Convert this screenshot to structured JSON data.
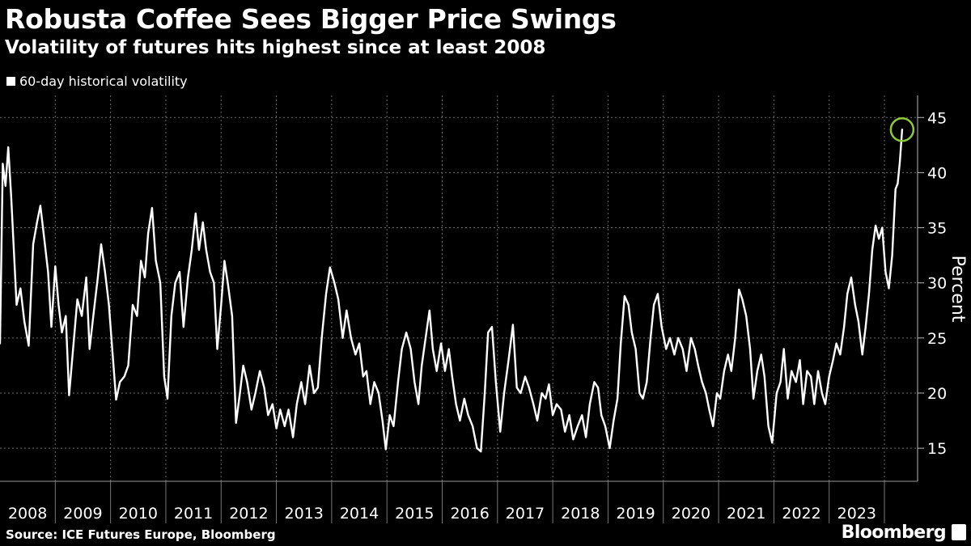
{
  "title": "Robusta Coffee Sees Bigger Price Swings",
  "subtitle": "Volatility of futures hits highest since at least 2008",
  "legend": "60-day historical volatility",
  "source": "Source: ICE Futures Europe, Bloomberg",
  "brand": "Bloomberg",
  "chart_data": {
    "type": "line",
    "series": [
      {
        "name": "60-day historical volatility",
        "color": "#ffffff",
        "points": [
          [
            2008.0,
            24.5
          ],
          [
            2008.05,
            40.8
          ],
          [
            2008.1,
            38.8
          ],
          [
            2008.15,
            42.3
          ],
          [
            2008.2,
            38.0
          ],
          [
            2008.25,
            33.0
          ],
          [
            2008.3,
            28.0
          ],
          [
            2008.37,
            29.5
          ],
          [
            2008.44,
            26.5
          ],
          [
            2008.52,
            24.3
          ],
          [
            2008.6,
            33.5
          ],
          [
            2008.67,
            35.5
          ],
          [
            2008.73,
            37.0
          ],
          [
            2008.8,
            34.0
          ],
          [
            2008.87,
            31.0
          ],
          [
            2008.93,
            26.0
          ],
          [
            2009.0,
            31.5
          ],
          [
            2009.06,
            28.0
          ],
          [
            2009.12,
            25.5
          ],
          [
            2009.19,
            27.0
          ],
          [
            2009.25,
            19.8
          ],
          [
            2009.33,
            24.5
          ],
          [
            2009.4,
            28.5
          ],
          [
            2009.48,
            27.0
          ],
          [
            2009.56,
            30.5
          ],
          [
            2009.62,
            24.0
          ],
          [
            2009.7,
            27.5
          ],
          [
            2009.77,
            30.5
          ],
          [
            2009.83,
            33.5
          ],
          [
            2009.9,
            31.0
          ],
          [
            2009.97,
            28.0
          ],
          [
            2010.03,
            24.0
          ],
          [
            2010.1,
            19.4
          ],
          [
            2010.17,
            21.0
          ],
          [
            2010.25,
            21.5
          ],
          [
            2010.32,
            22.5
          ],
          [
            2010.4,
            28.0
          ],
          [
            2010.48,
            27.0
          ],
          [
            2010.55,
            32.0
          ],
          [
            2010.62,
            30.5
          ],
          [
            2010.68,
            34.5
          ],
          [
            2010.75,
            36.8
          ],
          [
            2010.82,
            32.0
          ],
          [
            2010.9,
            30.0
          ],
          [
            2010.97,
            21.5
          ],
          [
            2011.03,
            19.5
          ],
          [
            2011.1,
            27.0
          ],
          [
            2011.17,
            30.0
          ],
          [
            2011.25,
            31.0
          ],
          [
            2011.32,
            26.0
          ],
          [
            2011.4,
            30.5
          ],
          [
            2011.47,
            33.0
          ],
          [
            2011.54,
            36.3
          ],
          [
            2011.6,
            33.0
          ],
          [
            2011.67,
            35.5
          ],
          [
            2011.73,
            33.0
          ],
          [
            2011.8,
            31.0
          ],
          [
            2011.87,
            30.0
          ],
          [
            2011.93,
            24.0
          ],
          [
            2012.0,
            28.0
          ],
          [
            2012.06,
            32.0
          ],
          [
            2012.12,
            30.0
          ],
          [
            2012.2,
            27.0
          ],
          [
            2012.27,
            17.3
          ],
          [
            2012.34,
            20.0
          ],
          [
            2012.4,
            22.5
          ],
          [
            2012.47,
            21.0
          ],
          [
            2012.55,
            18.5
          ],
          [
            2012.62,
            20.0
          ],
          [
            2012.7,
            22.0
          ],
          [
            2012.78,
            20.5
          ],
          [
            2012.85,
            18.0
          ],
          [
            2012.93,
            19.0
          ],
          [
            2013.0,
            16.8
          ],
          [
            2013.07,
            18.5
          ],
          [
            2013.15,
            17.0
          ],
          [
            2013.22,
            18.5
          ],
          [
            2013.3,
            16.0
          ],
          [
            2013.37,
            19.0
          ],
          [
            2013.45,
            21.0
          ],
          [
            2013.52,
            19.0
          ],
          [
            2013.6,
            22.5
          ],
          [
            2013.68,
            20.0
          ],
          [
            2013.75,
            20.5
          ],
          [
            2013.82,
            25.0
          ],
          [
            2013.9,
            29.0
          ],
          [
            2013.97,
            31.4
          ],
          [
            2014.05,
            30.0
          ],
          [
            2014.12,
            28.5
          ],
          [
            2014.2,
            25.0
          ],
          [
            2014.27,
            27.5
          ],
          [
            2014.35,
            25.0
          ],
          [
            2014.43,
            23.5
          ],
          [
            2014.5,
            24.5
          ],
          [
            2014.57,
            21.5
          ],
          [
            2014.63,
            22.0
          ],
          [
            2014.7,
            19.0
          ],
          [
            2014.77,
            21.0
          ],
          [
            2014.85,
            20.0
          ],
          [
            2014.92,
            17.5
          ],
          [
            2014.98,
            14.9
          ],
          [
            2015.05,
            18.0
          ],
          [
            2015.12,
            17.0
          ],
          [
            2015.2,
            21.0
          ],
          [
            2015.27,
            24.0
          ],
          [
            2015.35,
            25.5
          ],
          [
            2015.43,
            24.0
          ],
          [
            2015.5,
            21.0
          ],
          [
            2015.57,
            19.0
          ],
          [
            2015.63,
            22.5
          ],
          [
            2015.7,
            25.0
          ],
          [
            2015.77,
            27.5
          ],
          [
            2015.83,
            24.0
          ],
          [
            2015.9,
            22.0
          ],
          [
            2015.98,
            24.5
          ],
          [
            2016.05,
            22.0
          ],
          [
            2016.12,
            24.0
          ],
          [
            2016.18,
            21.5
          ],
          [
            2016.25,
            19.0
          ],
          [
            2016.32,
            17.5
          ],
          [
            2016.4,
            19.5
          ],
          [
            2016.47,
            18.0
          ],
          [
            2016.55,
            17.0
          ],
          [
            2016.63,
            15.0
          ],
          [
            2016.7,
            14.7
          ],
          [
            2016.77,
            20.0
          ],
          [
            2016.83,
            25.5
          ],
          [
            2016.9,
            26.0
          ],
          [
            2016.97,
            21.0
          ],
          [
            2017.05,
            16.5
          ],
          [
            2017.12,
            20.0
          ],
          [
            2017.2,
            23.0
          ],
          [
            2017.28,
            26.2
          ],
          [
            2017.35,
            20.5
          ],
          [
            2017.42,
            20.0
          ],
          [
            2017.5,
            21.5
          ],
          [
            2017.57,
            20.5
          ],
          [
            2017.65,
            19.0
          ],
          [
            2017.72,
            17.5
          ],
          [
            2017.8,
            20.0
          ],
          [
            2017.87,
            19.5
          ],
          [
            2017.93,
            20.8
          ],
          [
            2018.0,
            18.0
          ],
          [
            2018.07,
            19.0
          ],
          [
            2018.15,
            18.5
          ],
          [
            2018.22,
            16.5
          ],
          [
            2018.3,
            18.0
          ],
          [
            2018.37,
            15.8
          ],
          [
            2018.45,
            17.0
          ],
          [
            2018.53,
            18.0
          ],
          [
            2018.6,
            16.0
          ],
          [
            2018.67,
            19.0
          ],
          [
            2018.75,
            21.0
          ],
          [
            2018.82,
            20.5
          ],
          [
            2018.88,
            18.0
          ],
          [
            2018.95,
            17.0
          ],
          [
            2019.03,
            15.0
          ],
          [
            2019.1,
            17.5
          ],
          [
            2019.17,
            19.5
          ],
          [
            2019.23,
            24.5
          ],
          [
            2019.3,
            28.8
          ],
          [
            2019.37,
            28.0
          ],
          [
            2019.43,
            25.5
          ],
          [
            2019.5,
            24.0
          ],
          [
            2019.57,
            20.0
          ],
          [
            2019.63,
            19.5
          ],
          [
            2019.7,
            21.0
          ],
          [
            2019.77,
            25.0
          ],
          [
            2019.83,
            28.0
          ],
          [
            2019.9,
            29.0
          ],
          [
            2019.97,
            26.0
          ],
          [
            2020.05,
            24.0
          ],
          [
            2020.12,
            25.0
          ],
          [
            2020.2,
            23.5
          ],
          [
            2020.27,
            25.0
          ],
          [
            2020.35,
            24.0
          ],
          [
            2020.42,
            22.0
          ],
          [
            2020.5,
            25.0
          ],
          [
            2020.57,
            24.0
          ],
          [
            2020.63,
            22.5
          ],
          [
            2020.7,
            21.0
          ],
          [
            2020.77,
            20.0
          ],
          [
            2020.83,
            18.5
          ],
          [
            2020.9,
            17.0
          ],
          [
            2020.97,
            20.0
          ],
          [
            2021.03,
            19.5
          ],
          [
            2021.1,
            22.0
          ],
          [
            2021.17,
            23.5
          ],
          [
            2021.23,
            22.0
          ],
          [
            2021.3,
            25.0
          ],
          [
            2021.37,
            29.4
          ],
          [
            2021.43,
            28.5
          ],
          [
            2021.5,
            27.0
          ],
          [
            2021.57,
            24.0
          ],
          [
            2021.63,
            19.5
          ],
          [
            2021.7,
            22.0
          ],
          [
            2021.77,
            23.5
          ],
          [
            2021.83,
            21.5
          ],
          [
            2021.9,
            17.0
          ],
          [
            2021.97,
            15.5
          ],
          [
            2022.05,
            20.0
          ],
          [
            2022.12,
            21.0
          ],
          [
            2022.18,
            24.0
          ],
          [
            2022.25,
            19.5
          ],
          [
            2022.32,
            22.0
          ],
          [
            2022.4,
            21.0
          ],
          [
            2022.47,
            23.0
          ],
          [
            2022.53,
            19.0
          ],
          [
            2022.6,
            22.0
          ],
          [
            2022.67,
            21.5
          ],
          [
            2022.73,
            19.0
          ],
          [
            2022.8,
            22.0
          ],
          [
            2022.87,
            20.0
          ],
          [
            2022.93,
            19.0
          ],
          [
            2023.0,
            21.5
          ],
          [
            2023.07,
            23.0
          ],
          [
            2023.13,
            24.5
          ],
          [
            2023.2,
            23.5
          ],
          [
            2023.27,
            26.0
          ],
          [
            2023.33,
            29.0
          ],
          [
            2023.4,
            30.5
          ],
          [
            2023.47,
            28.0
          ],
          [
            2023.53,
            26.5
          ],
          [
            2023.6,
            23.5
          ],
          [
            2023.66,
            26.0
          ],
          [
            2023.72,
            29.0
          ],
          [
            2023.78,
            33.0
          ],
          [
            2023.84,
            35.2
          ],
          [
            2023.9,
            34.0
          ],
          [
            2023.96,
            35.0
          ],
          [
            2024.02,
            31.0
          ],
          [
            2024.08,
            29.5
          ],
          [
            2024.14,
            32.5
          ],
          [
            2024.2,
            38.5
          ],
          [
            2024.24,
            39.0
          ],
          [
            2024.28,
            41.0
          ],
          [
            2024.32,
            43.9
          ]
        ]
      }
    ],
    "x_ticks": [
      "2008",
      "2009",
      "2010",
      "2011",
      "2012",
      "2013",
      "2014",
      "2015",
      "2016",
      "2017",
      "2018",
      "2019",
      "2020",
      "2021",
      "2022",
      "2023"
    ],
    "y_ticks": [
      15,
      20,
      25,
      30,
      35,
      40,
      45
    ],
    "ylim": [
      12,
      47
    ],
    "xlim": [
      2008.0,
      2024.6
    ],
    "ylabel": "Percent",
    "xlabel": "",
    "grid": true,
    "annotation": {
      "type": "circle",
      "x": 2024.32,
      "y": 43.9,
      "color": "#8fc93a"
    }
  }
}
